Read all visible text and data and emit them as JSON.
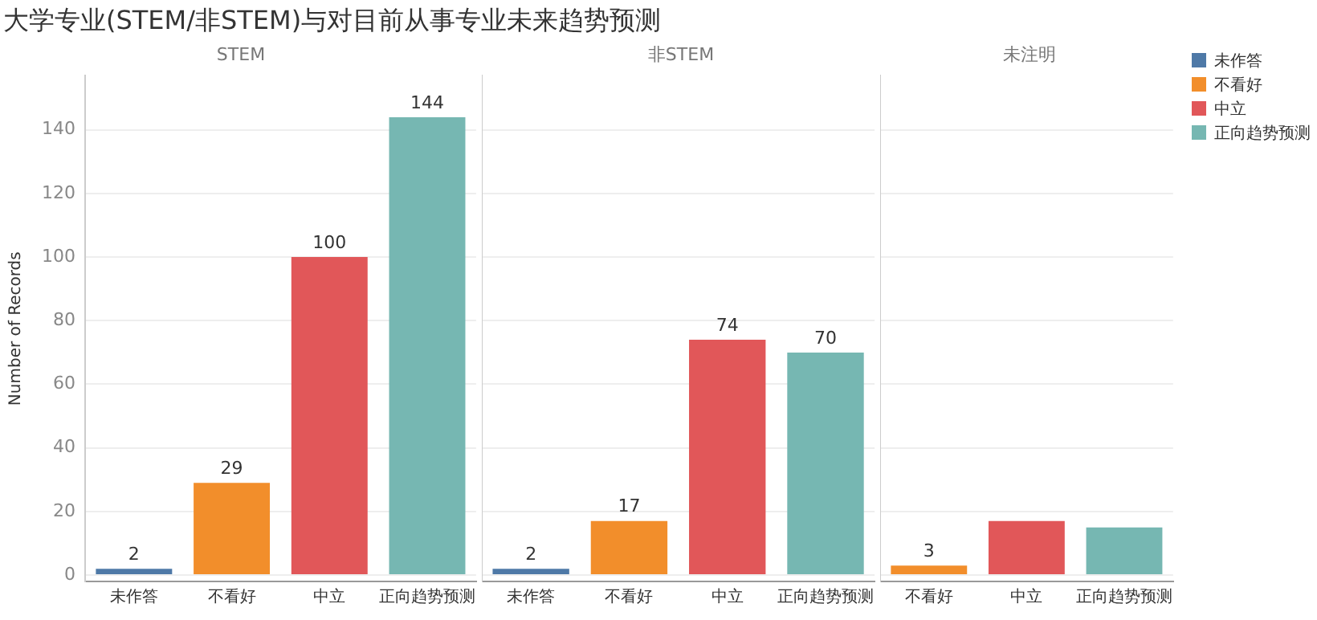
{
  "chart_data": [
    {
      "type": "bar",
      "title": "大学专业(STEM/非STEM)与对目前从事专业未来趋势预测",
      "subtitle": "STEM",
      "ylabel": "Number of Records",
      "categories": [
        "未作答",
        "不看好",
        "中立",
        "正向趋势预测"
      ],
      "series": [
        {
          "name": "未作答",
          "color": "#4e79a7",
          "values": [
            2,
            null,
            null,
            null
          ]
        },
        {
          "name": "不看好",
          "color": "#f28e2b",
          "values": [
            null,
            29,
            null,
            null
          ]
        },
        {
          "name": "中立",
          "color": "#e15759",
          "values": [
            null,
            null,
            100,
            null
          ]
        },
        {
          "name": "正向趋势预测",
          "color": "#76b7b2",
          "values": [
            null,
            null,
            null,
            144
          ]
        }
      ],
      "ylim": [
        -2,
        157
      ],
      "yticks": [
        0,
        20,
        40,
        60,
        80,
        100,
        120,
        140
      ],
      "grid": "y",
      "data_labels": true,
      "legend": "right"
    },
    {
      "type": "bar",
      "subtitle": "非STEM",
      "categories": [
        "未作答",
        "不看好",
        "中立",
        "正向趋势预测"
      ],
      "values": [
        2,
        17,
        74,
        70
      ],
      "colors": [
        "#4e79a7",
        "#f28e2b",
        "#e15759",
        "#76b7b2"
      ],
      "ylim": [
        -2,
        157
      ],
      "yticks": [
        0,
        20,
        40,
        60,
        80,
        100,
        120,
        140
      ],
      "grid": "y",
      "data_labels": true,
      "tick_labels": "x"
    },
    {
      "type": "bar",
      "subtitle": "未注明",
      "categories": [
        "不看好",
        "中立",
        "正向趋势预测"
      ],
      "values": [
        3,
        17,
        15
      ],
      "value_labels": [
        "3",
        null,
        null
      ],
      "colors": [
        "#f28e2b",
        "#e15759",
        "#76b7b2"
      ],
      "ylim": [
        -2,
        157
      ],
      "yticks": [
        0,
        20,
        40,
        60,
        80,
        100,
        120,
        140
      ],
      "grid": "y",
      "tick_labels": "x"
    }
  ]
}
